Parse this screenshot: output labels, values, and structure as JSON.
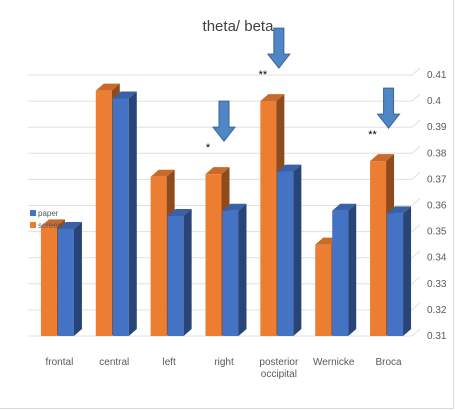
{
  "chart_data": {
    "type": "bar",
    "title": "theta/ beta",
    "categories": [
      "frontal",
      "central",
      "left",
      "right",
      "posterior occipital",
      "Wernicke",
      "Broca"
    ],
    "category_lines": [
      [
        "frontal"
      ],
      [
        "central"
      ],
      [
        "left"
      ],
      [
        "right"
      ],
      [
        "posterior",
        "occipital"
      ],
      [
        "Wernicke"
      ],
      [
        "Broca"
      ]
    ],
    "series": [
      {
        "name": "screen",
        "color": "#ED7D31",
        "values": [
          0.352,
          0.404,
          0.371,
          0.372,
          0.4,
          0.345,
          0.377
        ]
      },
      {
        "name": "paper",
        "color": "#4472C4",
        "values": [
          0.351,
          0.401,
          0.356,
          0.358,
          0.373,
          0.358,
          0.357
        ]
      }
    ],
    "ylim": [
      0.31,
      0.41
    ],
    "yticks": [
      "0.31",
      "0.32",
      "0.33",
      "0.34",
      "0.35",
      "0.36",
      "0.37",
      "0.38",
      "0.39",
      "0.4",
      "0.41"
    ],
    "y_axis_side": "right",
    "grid": true,
    "legend": {
      "placement": "left",
      "entries": [
        "paper",
        "screen"
      ]
    },
    "annotations": [
      {
        "category": "right",
        "text": "*",
        "arrow": true
      },
      {
        "category": "posterior occipital",
        "text": "**",
        "arrow": true
      },
      {
        "category": "Broca",
        "text": "**",
        "arrow": true
      }
    ],
    "arrow_color": "#4E86C6"
  }
}
